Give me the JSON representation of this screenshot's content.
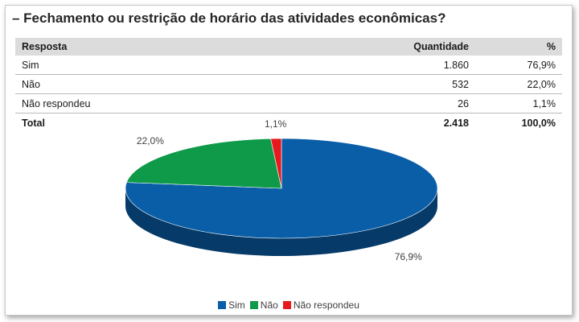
{
  "title": "– Fechamento ou restrição de horário das atividades econômicas?",
  "table": {
    "headers": [
      "Resposta",
      "Quantidade",
      "%"
    ],
    "rows": [
      {
        "resposta": "Sim",
        "quantidade": "1.860",
        "pct": "76,9%"
      },
      {
        "resposta": "Não",
        "quantidade": "532",
        "pct": "22,0%"
      },
      {
        "resposta": "Não respondeu",
        "quantidade": "26",
        "pct": "1,1%"
      }
    ],
    "total": {
      "resposta": "Total",
      "quantidade": "2.418",
      "pct": "100,0%"
    }
  },
  "chart_data": {
    "type": "pie",
    "categories": [
      "Sim",
      "Não",
      "Não respondeu"
    ],
    "values": [
      76.9,
      22.0,
      1.1
    ],
    "labels": [
      "76,9%",
      "22,0%",
      "1,1%"
    ],
    "colors": [
      "#0a5ea8",
      "#0f9a4a",
      "#e8191e"
    ],
    "legend": "bottom-center",
    "style": "3d"
  }
}
